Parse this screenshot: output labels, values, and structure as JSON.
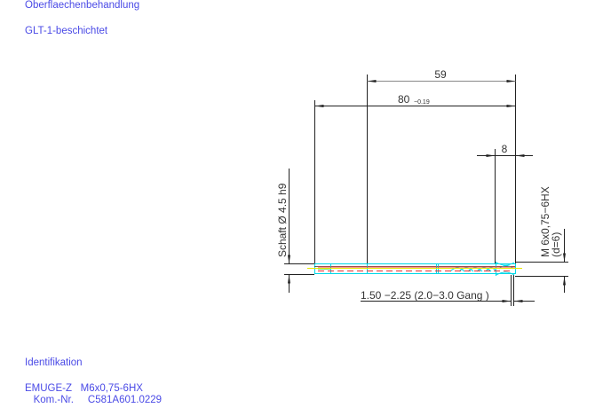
{
  "notes": {
    "surface_treatment_label": "Oberflaechenbehandlung",
    "surface_treatment_value": "GLT-1-beschichtet",
    "identification_label": "Identifikation",
    "product_line": "EMUGE-Z   M6x0,75-6HX",
    "commission_line": "   Kom.-Nr.     C581A601.0229"
  },
  "dimensions": {
    "thread_length": "59",
    "total_length": "80",
    "total_length_tolerance": "−0.19",
    "thread_end": "8",
    "shank": "Schaft  Ø 4.5  h9",
    "thread_spec": "M 6x0,75−6HX",
    "thread_d": "(d=6)",
    "chamfer": "1.50 −2.25 (2.0−3.0  Gang   )"
  },
  "colors": {
    "text": "#4a4ae6",
    "outline": "#00d8e8",
    "center": "#e8e800",
    "hidden": "#e83030",
    "dim": "#222222"
  }
}
